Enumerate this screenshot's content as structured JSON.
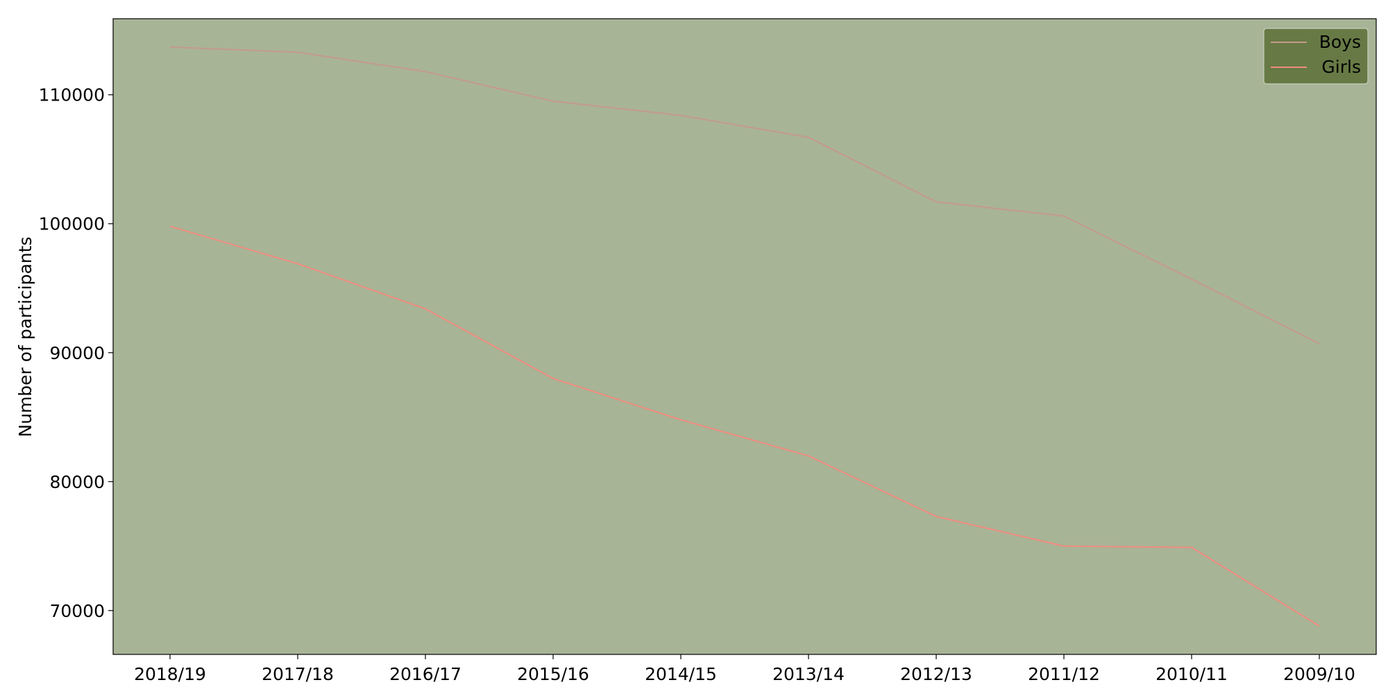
{
  "chart_data": {
    "type": "line",
    "title": "",
    "xlabel": "",
    "ylabel": "Number of participants",
    "categories": [
      "2018/19",
      "2017/18",
      "2016/17",
      "2015/16",
      "2014/15",
      "2013/14",
      "2012/13",
      "2011/12",
      "2010/11",
      "2009/10"
    ],
    "series": [
      {
        "name": "Boys",
        "color": "#c49a8c",
        "values": [
          113700,
          113300,
          111800,
          109500,
          108400,
          106700,
          101700,
          100600,
          95700,
          90700
        ]
      },
      {
        "name": "Girls",
        "color": "#f08c80",
        "values": [
          99800,
          96900,
          93400,
          88000,
          84800,
          82000,
          77300,
          75000,
          74900,
          68800
        ]
      }
    ],
    "yticks": [
      70000,
      80000,
      90000,
      100000,
      110000
    ],
    "ylim": [
      66600,
      115900
    ],
    "grid": false,
    "legend_position": "top-right",
    "plot_background": "#a8b496",
    "legend_background": "#677a45"
  }
}
